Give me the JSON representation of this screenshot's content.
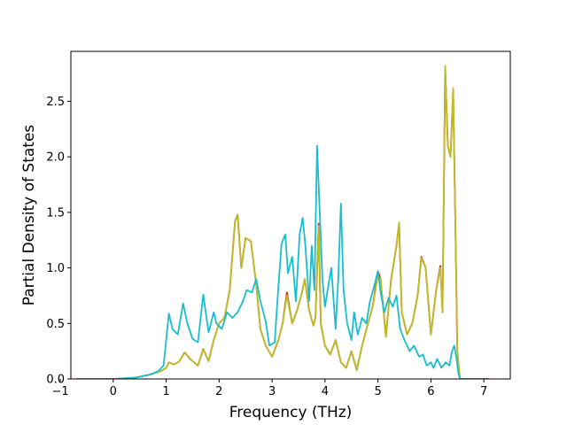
{
  "chart_data": {
    "type": "line",
    "title": "",
    "xlabel": "Frequency (THz)",
    "ylabel": "Partial Density of States",
    "xlim": [
      -0.8,
      7.5
    ],
    "ylim": [
      0.0,
      2.95
    ],
    "xticks": [
      -1,
      0,
      1,
      2,
      3,
      4,
      5,
      6,
      7
    ],
    "xtick_labels": [
      "−1",
      "0",
      "1",
      "2",
      "3",
      "4",
      "5",
      "6",
      "7"
    ],
    "yticks": [
      0.0,
      0.5,
      1.0,
      1.5,
      2.0,
      2.5
    ],
    "ytick_labels": [
      "0.0",
      "0.5",
      "1.0",
      "1.5",
      "2.0",
      "2.5"
    ],
    "grid": false,
    "legend": "none",
    "series": [
      {
        "color": "#d62728",
        "points": [
          [
            -0.7,
            0
          ],
          [
            0,
            0
          ],
          [
            0.4,
            0.01
          ],
          [
            0.7,
            0.04
          ],
          [
            0.9,
            0.07
          ],
          [
            1.0,
            0.1
          ],
          [
            1.05,
            0.15
          ],
          [
            1.15,
            0.13
          ],
          [
            1.25,
            0.16
          ],
          [
            1.35,
            0.24
          ],
          [
            1.45,
            0.18
          ],
          [
            1.6,
            0.12
          ],
          [
            1.7,
            0.27
          ],
          [
            1.8,
            0.16
          ],
          [
            1.9,
            0.35
          ],
          [
            2.0,
            0.5
          ],
          [
            2.1,
            0.55
          ],
          [
            2.2,
            0.8
          ],
          [
            2.3,
            1.42
          ],
          [
            2.35,
            1.48
          ],
          [
            2.42,
            1.0
          ],
          [
            2.5,
            1.27
          ],
          [
            2.6,
            1.24
          ],
          [
            2.7,
            0.85
          ],
          [
            2.78,
            0.45
          ],
          [
            2.88,
            0.3
          ],
          [
            3.0,
            0.2
          ],
          [
            3.12,
            0.35
          ],
          [
            3.2,
            0.5
          ],
          [
            3.28,
            0.78
          ],
          [
            3.38,
            0.5
          ],
          [
            3.46,
            0.6
          ],
          [
            3.55,
            0.75
          ],
          [
            3.62,
            0.9
          ],
          [
            3.7,
            0.62
          ],
          [
            3.78,
            0.48
          ],
          [
            3.82,
            0.55
          ],
          [
            3.88,
            1.4
          ],
          [
            3.92,
            0.5
          ],
          [
            4.0,
            0.3
          ],
          [
            4.1,
            0.22
          ],
          [
            4.2,
            0.35
          ],
          [
            4.3,
            0.15
          ],
          [
            4.4,
            0.1
          ],
          [
            4.5,
            0.25
          ],
          [
            4.6,
            0.08
          ],
          [
            4.7,
            0.3
          ],
          [
            4.8,
            0.48
          ],
          [
            4.9,
            0.65
          ],
          [
            5.0,
            0.97
          ],
          [
            5.05,
            0.9
          ],
          [
            5.15,
            0.38
          ],
          [
            5.25,
            0.9
          ],
          [
            5.35,
            1.2
          ],
          [
            5.4,
            1.4
          ],
          [
            5.45,
            0.6
          ],
          [
            5.55,
            0.4
          ],
          [
            5.65,
            0.5
          ],
          [
            5.75,
            0.75
          ],
          [
            5.82,
            1.1
          ],
          [
            5.9,
            1.0
          ],
          [
            6.0,
            0.4
          ],
          [
            6.1,
            0.8
          ],
          [
            6.18,
            1.02
          ],
          [
            6.22,
            0.6
          ],
          [
            6.27,
            2.8
          ],
          [
            6.32,
            2.1
          ],
          [
            6.37,
            2.0
          ],
          [
            6.42,
            2.6
          ],
          [
            6.47,
            1.2
          ],
          [
            6.5,
            0.25
          ],
          [
            6.55,
            0
          ],
          [
            7.1,
            0
          ]
        ]
      },
      {
        "color": "#bcbd22",
        "points": [
          [
            -0.7,
            0
          ],
          [
            0,
            0
          ],
          [
            0.4,
            0.01
          ],
          [
            0.7,
            0.04
          ],
          [
            0.9,
            0.07
          ],
          [
            1.0,
            0.1
          ],
          [
            1.05,
            0.15
          ],
          [
            1.15,
            0.13
          ],
          [
            1.25,
            0.16
          ],
          [
            1.35,
            0.24
          ],
          [
            1.45,
            0.18
          ],
          [
            1.6,
            0.12
          ],
          [
            1.7,
            0.27
          ],
          [
            1.8,
            0.16
          ],
          [
            1.9,
            0.35
          ],
          [
            2.0,
            0.5
          ],
          [
            2.1,
            0.55
          ],
          [
            2.2,
            0.8
          ],
          [
            2.3,
            1.42
          ],
          [
            2.35,
            1.48
          ],
          [
            2.42,
            1.0
          ],
          [
            2.5,
            1.27
          ],
          [
            2.6,
            1.24
          ],
          [
            2.7,
            0.85
          ],
          [
            2.78,
            0.45
          ],
          [
            2.88,
            0.3
          ],
          [
            3.0,
            0.2
          ],
          [
            3.12,
            0.35
          ],
          [
            3.2,
            0.5
          ],
          [
            3.28,
            0.75
          ],
          [
            3.38,
            0.5
          ],
          [
            3.46,
            0.6
          ],
          [
            3.55,
            0.75
          ],
          [
            3.62,
            0.9
          ],
          [
            3.7,
            0.62
          ],
          [
            3.78,
            0.48
          ],
          [
            3.82,
            0.55
          ],
          [
            3.88,
            1.38
          ],
          [
            3.92,
            0.5
          ],
          [
            4.0,
            0.3
          ],
          [
            4.1,
            0.22
          ],
          [
            4.2,
            0.35
          ],
          [
            4.3,
            0.15
          ],
          [
            4.4,
            0.1
          ],
          [
            4.5,
            0.25
          ],
          [
            4.6,
            0.08
          ],
          [
            4.7,
            0.3
          ],
          [
            4.8,
            0.48
          ],
          [
            4.9,
            0.65
          ],
          [
            5.0,
            0.93
          ],
          [
            5.05,
            0.9
          ],
          [
            5.15,
            0.38
          ],
          [
            5.25,
            0.9
          ],
          [
            5.35,
            1.2
          ],
          [
            5.4,
            1.41
          ],
          [
            5.45,
            0.6
          ],
          [
            5.55,
            0.4
          ],
          [
            5.65,
            0.5
          ],
          [
            5.75,
            0.75
          ],
          [
            5.82,
            1.09
          ],
          [
            5.9,
            1.0
          ],
          [
            6.0,
            0.4
          ],
          [
            6.1,
            0.8
          ],
          [
            6.18,
            1.0
          ],
          [
            6.22,
            0.6
          ],
          [
            6.27,
            2.82
          ],
          [
            6.32,
            2.1
          ],
          [
            6.37,
            2.0
          ],
          [
            6.42,
            2.62
          ],
          [
            6.47,
            1.2
          ],
          [
            6.5,
            0.25
          ],
          [
            6.55,
            0
          ],
          [
            7.1,
            0
          ]
        ]
      },
      {
        "color": "#17becf",
        "points": [
          [
            -0.7,
            0
          ],
          [
            0,
            0
          ],
          [
            0.4,
            0.01
          ],
          [
            0.7,
            0.04
          ],
          [
            0.85,
            0.07
          ],
          [
            0.95,
            0.12
          ],
          [
            1.0,
            0.35
          ],
          [
            1.05,
            0.59
          ],
          [
            1.12,
            0.45
          ],
          [
            1.22,
            0.4
          ],
          [
            1.32,
            0.68
          ],
          [
            1.4,
            0.5
          ],
          [
            1.5,
            0.36
          ],
          [
            1.6,
            0.33
          ],
          [
            1.7,
            0.76
          ],
          [
            1.8,
            0.42
          ],
          [
            1.9,
            0.6
          ],
          [
            1.95,
            0.5
          ],
          [
            2.05,
            0.45
          ],
          [
            2.15,
            0.6
          ],
          [
            2.25,
            0.55
          ],
          [
            2.35,
            0.6
          ],
          [
            2.45,
            0.7
          ],
          [
            2.52,
            0.8
          ],
          [
            2.62,
            0.78
          ],
          [
            2.7,
            0.9
          ],
          [
            2.78,
            0.7
          ],
          [
            2.88,
            0.52
          ],
          [
            2.95,
            0.3
          ],
          [
            3.05,
            0.33
          ],
          [
            3.1,
            0.7
          ],
          [
            3.18,
            1.22
          ],
          [
            3.25,
            1.3
          ],
          [
            3.3,
            0.95
          ],
          [
            3.38,
            1.1
          ],
          [
            3.45,
            0.7
          ],
          [
            3.52,
            1.3
          ],
          [
            3.58,
            1.45
          ],
          [
            3.63,
            1.2
          ],
          [
            3.7,
            0.7
          ],
          [
            3.75,
            1.2
          ],
          [
            3.8,
            0.8
          ],
          [
            3.85,
            2.1
          ],
          [
            3.9,
            1.5
          ],
          [
            3.95,
            0.9
          ],
          [
            4.0,
            0.65
          ],
          [
            4.05,
            0.8
          ],
          [
            4.12,
            1.0
          ],
          [
            4.2,
            0.45
          ],
          [
            4.25,
            0.9
          ],
          [
            4.3,
            1.58
          ],
          [
            4.35,
            0.8
          ],
          [
            4.42,
            0.5
          ],
          [
            4.5,
            0.35
          ],
          [
            4.55,
            0.6
          ],
          [
            4.62,
            0.4
          ],
          [
            4.7,
            0.55
          ],
          [
            4.78,
            0.5
          ],
          [
            4.85,
            0.7
          ],
          [
            4.92,
            0.82
          ],
          [
            5.0,
            0.97
          ],
          [
            5.05,
            0.78
          ],
          [
            5.12,
            0.6
          ],
          [
            5.2,
            0.73
          ],
          [
            5.28,
            0.65
          ],
          [
            5.35,
            0.75
          ],
          [
            5.42,
            0.45
          ],
          [
            5.5,
            0.35
          ],
          [
            5.6,
            0.25
          ],
          [
            5.68,
            0.3
          ],
          [
            5.78,
            0.2
          ],
          [
            5.85,
            0.22
          ],
          [
            5.92,
            0.12
          ],
          [
            6.0,
            0.15
          ],
          [
            6.05,
            0.1
          ],
          [
            6.12,
            0.18
          ],
          [
            6.2,
            0.1
          ],
          [
            6.28,
            0.15
          ],
          [
            6.35,
            0.12
          ],
          [
            6.4,
            0.25
          ],
          [
            6.44,
            0.3
          ],
          [
            6.48,
            0.2
          ],
          [
            6.52,
            0.05
          ],
          [
            6.55,
            0
          ],
          [
            7.1,
            0
          ]
        ]
      }
    ]
  }
}
